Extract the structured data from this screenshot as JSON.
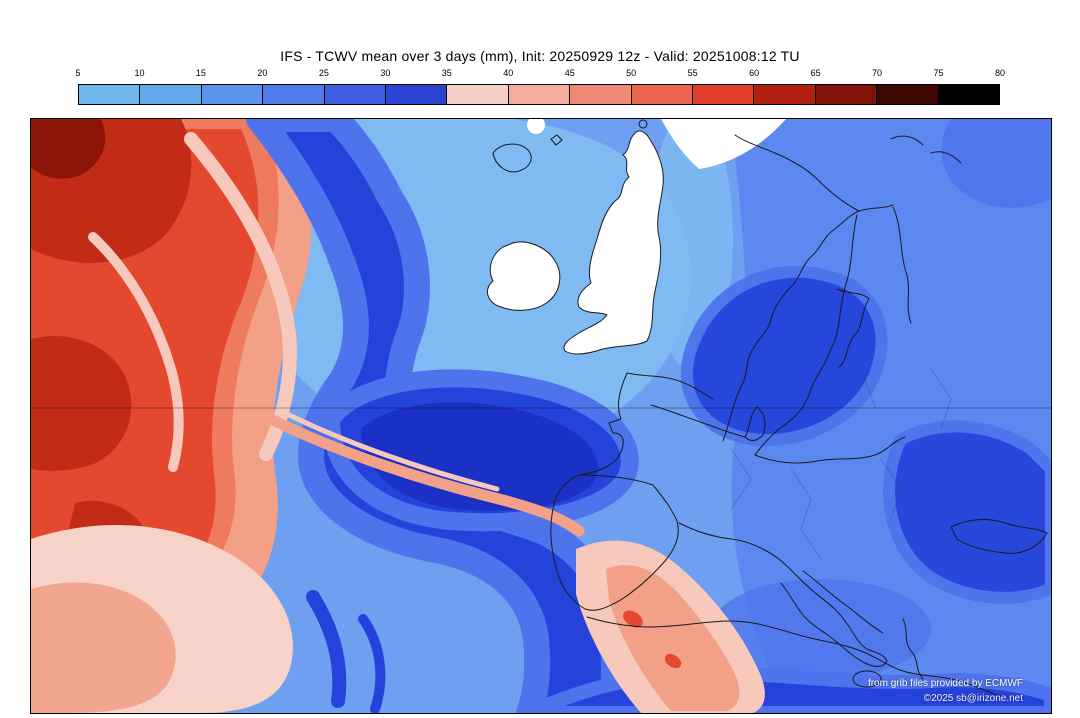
{
  "title": "IFS - TCWV mean over 3 days (mm), Init: 20250929 12z - Valid: 20251008:12 TU",
  "colorbar": {
    "units": "mm",
    "tick_labels": [
      "5",
      "10",
      "15",
      "20",
      "25",
      "30",
      "35",
      "40",
      "45",
      "50",
      "55",
      "60",
      "65",
      "70",
      "75",
      "80"
    ],
    "cell_colors": [
      "#6db7ee",
      "#62a9ec",
      "#5b93ec",
      "#4e7bec",
      "#3f5fe2",
      "#2a43d2",
      "#f6cfc6",
      "#f4ad9c",
      "#f08a74",
      "#ea644e",
      "#e13e2c",
      "#b22014",
      "#801208",
      "#400803",
      "#000000"
    ]
  },
  "attribution": {
    "line1": "from grib files provided by ECMWF",
    "line2": "©2025 sb@irizone.net"
  },
  "map_colors": {
    "base": "#6f9ff0",
    "light_blue": "#7fbcf2",
    "mid_blue": "#5b84ee",
    "royal_blue": "#4e73ec",
    "navy": "#2543da",
    "deep_navy": "#1b2fc2",
    "pale_pink": "#f7d2c8",
    "pink": "#f6c9bc",
    "salmon": "#f2a188",
    "coral": "#ee7b5e",
    "red": "#e4482e",
    "dark_red": "#c22b15",
    "deep_red": "#8c1408",
    "land_white": "#ffffff",
    "coast": "#1a1a1a",
    "grid": "#00000059"
  },
  "chart_data": {
    "type": "heatmap",
    "title": "IFS - TCWV mean over 3 days (mm), Init: 20250929 12z - Valid: 20251008:12 TU",
    "variable": "TCWV mean over 3 days",
    "units": "mm",
    "model": "IFS",
    "init": "20250929 12z",
    "valid": "20251008:12 TU",
    "scale_ticks": [
      5,
      10,
      15,
      20,
      25,
      30,
      35,
      40,
      45,
      50,
      55,
      60,
      65,
      70,
      75,
      80
    ],
    "legend_position": "top",
    "region": "North Atlantic and Europe",
    "notes": "High TCWV (35-80 mm, red shades) over western/subtropical Atlantic; low TCWV (5-35 mm, blue shades) over Europe; driest white areas (<5 mm) over British Isles; dark blue filament sweeping from mid-Atlantic toward Iberia and along the Mediterranean"
  }
}
